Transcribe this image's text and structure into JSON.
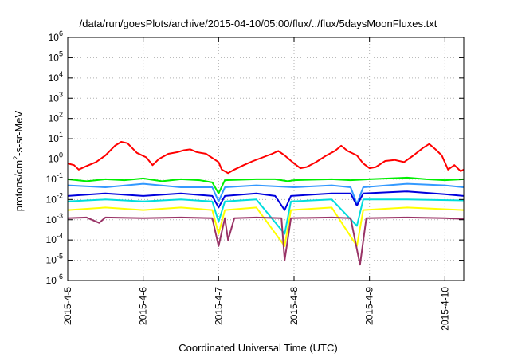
{
  "chart_data": {
    "type": "line",
    "title": "/data/run/goesPlots/archive/2015-04-10/05:00/flux/../flux/5daysMoonFluxes.txt",
    "xlabel": "Coordinated Universal Time (UTC)",
    "ylabel": {
      "base": "protons/cm",
      "sup": "2",
      "rest": "-s-sr-MeV"
    },
    "y_scale": "log",
    "ylim": [
      1e-06,
      1000000.0
    ],
    "xlim": [
      "2015-04-05",
      "2015-04-10 06:00"
    ],
    "grid": true,
    "legend": "none",
    "y_ticks": [
      {
        "value": 1e-06,
        "base": "10",
        "exp": "-6"
      },
      {
        "value": 1e-05,
        "base": "10",
        "exp": "-5"
      },
      {
        "value": 0.0001,
        "base": "10",
        "exp": "-4"
      },
      {
        "value": 0.001,
        "base": "10",
        "exp": "-3"
      },
      {
        "value": 0.01,
        "base": "10",
        "exp": "-2"
      },
      {
        "value": 0.1,
        "base": "10",
        "exp": "-1"
      },
      {
        "value": 1,
        "base": "10",
        "exp": "0"
      },
      {
        "value": 10.0,
        "base": "10",
        "exp": "1"
      },
      {
        "value": 100.0,
        "base": "10",
        "exp": "2"
      },
      {
        "value": 1000.0,
        "base": "10",
        "exp": "3"
      },
      {
        "value": 10000.0,
        "base": "10",
        "exp": "4"
      },
      {
        "value": 100000.0,
        "base": "10",
        "exp": "5"
      },
      {
        "value": 1000000.0,
        "base": "10",
        "exp": "6"
      }
    ],
    "x_ticks": [
      "2015-4-5",
      "2015-4-6",
      "2015-4-7",
      "2015-4-8",
      "2015-4-9",
      "2015-4-10"
    ],
    "x_tick_dates": [
      "2015-04-05",
      "2015-04-06",
      "2015-04-07",
      "2015-04-08",
      "2015-04-09",
      "2015-04-10"
    ],
    "series": [
      {
        "color": "#ff0000",
        "points": [
          [
            "2015-04-05 00:00",
            0.6
          ],
          [
            "2015-04-05 02:00",
            0.5
          ],
          [
            "2015-04-05 03:30",
            0.3
          ],
          [
            "2015-04-05 06:00",
            0.45
          ],
          [
            "2015-04-05 09:00",
            0.7
          ],
          [
            "2015-04-05 12:00",
            1.5
          ],
          [
            "2015-04-05 15:00",
            4.5
          ],
          [
            "2015-04-05 17:00",
            7
          ],
          [
            "2015-04-05 19:00",
            6
          ],
          [
            "2015-04-05 22:00",
            2
          ],
          [
            "2015-04-06 01:00",
            1.2
          ],
          [
            "2015-04-06 03:00",
            0.5
          ],
          [
            "2015-04-06 05:00",
            1
          ],
          [
            "2015-04-06 08:00",
            1.8
          ],
          [
            "2015-04-06 11:00",
            2.2
          ],
          [
            "2015-04-06 13:00",
            2.7
          ],
          [
            "2015-04-06 15:00",
            3
          ],
          [
            "2015-04-06 17:00",
            2.2
          ],
          [
            "2015-04-06 20:00",
            1.8
          ],
          [
            "2015-04-07 00:00",
            0.7
          ],
          [
            "2015-04-07 01:00",
            0.3
          ],
          [
            "2015-04-07 03:00",
            0.2
          ],
          [
            "2015-04-07 05:00",
            0.3
          ],
          [
            "2015-04-07 08:00",
            0.5
          ],
          [
            "2015-04-07 11:00",
            0.8
          ],
          [
            "2015-04-07 14:00",
            1.2
          ],
          [
            "2015-04-07 17:00",
            1.8
          ],
          [
            "2015-04-07 19:00",
            2.5
          ],
          [
            "2015-04-07 21:00",
            1.5
          ],
          [
            "2015-04-08 00:00",
            0.6
          ],
          [
            "2015-04-08 02:00",
            0.35
          ],
          [
            "2015-04-08 04:00",
            0.4
          ],
          [
            "2015-04-08 07:00",
            0.7
          ],
          [
            "2015-04-08 10:00",
            1.4
          ],
          [
            "2015-04-08 13:00",
            2.5
          ],
          [
            "2015-04-08 15:00",
            4.5
          ],
          [
            "2015-04-08 17:00",
            2.5
          ],
          [
            "2015-04-08 20:00",
            1.5
          ],
          [
            "2015-04-08 22:00",
            0.6
          ],
          [
            "2015-04-09 00:00",
            0.35
          ],
          [
            "2015-04-09 02:00",
            0.4
          ],
          [
            "2015-04-09 05:00",
            0.8
          ],
          [
            "2015-04-09 08:00",
            0.9
          ],
          [
            "2015-04-09 11:00",
            0.7
          ],
          [
            "2015-04-09 14:00",
            1.5
          ],
          [
            "2015-04-09 17:00",
            3.5
          ],
          [
            "2015-04-09 19:00",
            5.5
          ],
          [
            "2015-04-09 21:00",
            3
          ],
          [
            "2015-04-09 23:00",
            1.5
          ],
          [
            "2015-04-10 01:00",
            0.3
          ],
          [
            "2015-04-10 03:00",
            0.5
          ],
          [
            "2015-04-10 05:00",
            0.25
          ],
          [
            "2015-04-10 06:00",
            0.3
          ]
        ]
      },
      {
        "color": "#00ee00",
        "points": [
          [
            "2015-04-05 00:00",
            0.1
          ],
          [
            "2015-04-05 06:00",
            0.08
          ],
          [
            "2015-04-05 12:00",
            0.1
          ],
          [
            "2015-04-05 18:00",
            0.09
          ],
          [
            "2015-04-06 00:00",
            0.11
          ],
          [
            "2015-04-06 06:00",
            0.08
          ],
          [
            "2015-04-06 12:00",
            0.1
          ],
          [
            "2015-04-06 18:00",
            0.09
          ],
          [
            "2015-04-06 22:00",
            0.07
          ],
          [
            "2015-04-07 00:00",
            0.02
          ],
          [
            "2015-04-07 02:00",
            0.09
          ],
          [
            "2015-04-07 12:00",
            0.1
          ],
          [
            "2015-04-07 18:00",
            0.1
          ],
          [
            "2015-04-07 22:00",
            0.08
          ],
          [
            "2015-04-08 00:00",
            0.09
          ],
          [
            "2015-04-08 12:00",
            0.1
          ],
          [
            "2015-04-08 18:00",
            0.09
          ],
          [
            "2015-04-09 00:00",
            0.1
          ],
          [
            "2015-04-09 12:00",
            0.12
          ],
          [
            "2015-04-09 18:00",
            0.1
          ],
          [
            "2015-04-10 00:00",
            0.09
          ],
          [
            "2015-04-10 06:00",
            0.1
          ]
        ]
      },
      {
        "color": "#3399ff",
        "points": [
          [
            "2015-04-05 00:00",
            0.05
          ],
          [
            "2015-04-05 12:00",
            0.04
          ],
          [
            "2015-04-06 00:00",
            0.06
          ],
          [
            "2015-04-06 12:00",
            0.04
          ],
          [
            "2015-04-06 22:00",
            0.04
          ],
          [
            "2015-04-07 00:00",
            0.008
          ],
          [
            "2015-04-07 02:00",
            0.04
          ],
          [
            "2015-04-07 12:00",
            0.05
          ],
          [
            "2015-04-08 00:00",
            0.04
          ],
          [
            "2015-04-08 12:00",
            0.05
          ],
          [
            "2015-04-08 18:00",
            0.04
          ],
          [
            "2015-04-08 20:00",
            0.006
          ],
          [
            "2015-04-08 22:00",
            0.04
          ],
          [
            "2015-04-09 12:00",
            0.06
          ],
          [
            "2015-04-10 00:00",
            0.05
          ],
          [
            "2015-04-10 06:00",
            0.04
          ]
        ]
      },
      {
        "color": "#0000dd",
        "points": [
          [
            "2015-04-05 00:00",
            0.015
          ],
          [
            "2015-04-05 12:00",
            0.02
          ],
          [
            "2015-04-06 00:00",
            0.015
          ],
          [
            "2015-04-06 12:00",
            0.02
          ],
          [
            "2015-04-06 22:00",
            0.015
          ],
          [
            "2015-04-07 00:00",
            0.004
          ],
          [
            "2015-04-07 02:00",
            0.015
          ],
          [
            "2015-04-07 12:00",
            0.02
          ],
          [
            "2015-04-07 18:00",
            0.015
          ],
          [
            "2015-04-07 21:00",
            0.003
          ],
          [
            "2015-04-07 23:00",
            0.015
          ],
          [
            "2015-04-08 12:00",
            0.02
          ],
          [
            "2015-04-08 18:00",
            0.02
          ],
          [
            "2015-04-08 20:00",
            0.005
          ],
          [
            "2015-04-08 22:00",
            0.02
          ],
          [
            "2015-04-09 12:00",
            0.025
          ],
          [
            "2015-04-10 00:00",
            0.018
          ],
          [
            "2015-04-10 06:00",
            0.015
          ]
        ]
      },
      {
        "color": "#00dddd",
        "points": [
          [
            "2015-04-05 00:00",
            0.008
          ],
          [
            "2015-04-05 12:00",
            0.01
          ],
          [
            "2015-04-06 00:00",
            0.008
          ],
          [
            "2015-04-06 12:00",
            0.01
          ],
          [
            "2015-04-06 22:00",
            0.008
          ],
          [
            "2015-04-07 00:00",
            0.0008
          ],
          [
            "2015-04-07 02:00",
            0.008
          ],
          [
            "2015-04-07 12:00",
            0.01
          ],
          [
            "2015-04-07 21:00",
            0.0002
          ],
          [
            "2015-04-07 23:00",
            0.008
          ],
          [
            "2015-04-08 12:00",
            0.01
          ],
          [
            "2015-04-08 20:00",
            0.0005
          ],
          [
            "2015-04-08 22:00",
            0.01
          ],
          [
            "2015-04-09 12:00",
            0.01
          ],
          [
            "2015-04-10 06:00",
            0.009
          ]
        ]
      },
      {
        "color": "#ffff00",
        "points": [
          [
            "2015-04-05 00:00",
            0.003
          ],
          [
            "2015-04-05 12:00",
            0.004
          ],
          [
            "2015-04-06 00:00",
            0.003
          ],
          [
            "2015-04-06 12:00",
            0.004
          ],
          [
            "2015-04-06 22:00",
            0.003
          ],
          [
            "2015-04-07 00:00",
            0.0002
          ],
          [
            "2015-04-07 02:00",
            0.003
          ],
          [
            "2015-04-07 12:00",
            0.004
          ],
          [
            "2015-04-07 21:00",
            5e-05
          ],
          [
            "2015-04-07 23:00",
            0.003
          ],
          [
            "2015-04-08 12:00",
            0.004
          ],
          [
            "2015-04-08 20:00",
            5e-05
          ],
          [
            "2015-04-08 22:00",
            0.003
          ],
          [
            "2015-04-09 12:00",
            0.004
          ],
          [
            "2015-04-10 06:00",
            0.003
          ]
        ]
      },
      {
        "color": "#993366",
        "points": [
          [
            "2015-04-05 00:00",
            0.0012
          ],
          [
            "2015-04-05 06:00",
            0.0013
          ],
          [
            "2015-04-05 10:00",
            0.0007
          ],
          [
            "2015-04-05 12:00",
            0.0013
          ],
          [
            "2015-04-06 00:00",
            0.0012
          ],
          [
            "2015-04-06 12:00",
            0.0013
          ],
          [
            "2015-04-06 22:00",
            0.0012
          ],
          [
            "2015-04-07 00:00",
            5e-05
          ],
          [
            "2015-04-07 02:00",
            0.0012
          ],
          [
            "2015-04-07 03:00",
            0.0001
          ],
          [
            "2015-04-07 05:00",
            0.0012
          ],
          [
            "2015-04-07 12:00",
            0.0013
          ],
          [
            "2015-04-07 20:00",
            0.0012
          ],
          [
            "2015-04-07 21:00",
            1e-05
          ],
          [
            "2015-04-07 23:00",
            0.0012
          ],
          [
            "2015-04-08 12:00",
            0.0013
          ],
          [
            "2015-04-08 18:00",
            0.0012
          ],
          [
            "2015-04-08 21:00",
            6e-06
          ],
          [
            "2015-04-08 23:00",
            0.0012
          ],
          [
            "2015-04-09 12:00",
            0.0013
          ],
          [
            "2015-04-10 00:00",
            0.0012
          ],
          [
            "2015-04-10 06:00",
            0.0011
          ]
        ]
      }
    ]
  }
}
